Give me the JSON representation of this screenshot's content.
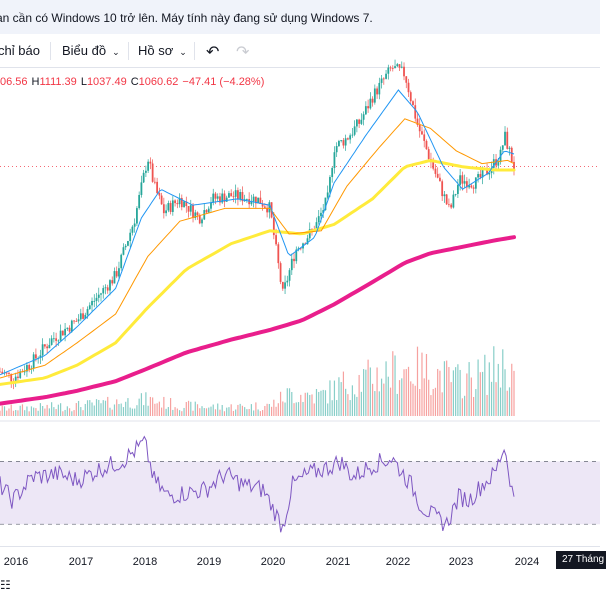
{
  "banner": {
    "text": "ạn cần có Windows 10 trở lên. Máy tính này đang sử dụng Windows 7."
  },
  "toolbar": {
    "indicators_label": "chỉ báo",
    "chart_label": "Biểu đồ",
    "profile_label": "Hồ sơ",
    "undo_icon": "undo-icon",
    "redo_icon": "redo-icon"
  },
  "legend": {
    "open_value": "06.56",
    "high_key": "H",
    "high_value": "1111.39",
    "low_key": "L",
    "low_value": "1037.49",
    "close_key": "C",
    "close_value": "1060.62",
    "change": "−47.41 (−4.28%)"
  },
  "colors": {
    "up": "#26a69a",
    "down": "#ef5350",
    "ma_fast": "#2196f3",
    "ma_mid": "#ff9800",
    "ma_slow": "#ffeb3b",
    "ma_long": "#e91e8c",
    "rsi": "#7e57c2",
    "rsi_band": "#ede7f6"
  },
  "x_axis": {
    "ticks": [
      "2016",
      "2017",
      "2018",
      "2019",
      "2020",
      "2021",
      "2022",
      "2023",
      "2024"
    ],
    "cursor_label": "27 Tháng"
  },
  "chart_data": {
    "type": "candlestick",
    "title": "",
    "x_start": 2015.8,
    "x_end": 2023.8,
    "price_range": [
      300,
      1300
    ],
    "last_close": 1060.62,
    "price_keypoints": [
      [
        2015.8,
        420
      ],
      [
        2016.0,
        400
      ],
      [
        2016.3,
        450
      ],
      [
        2016.6,
        520
      ],
      [
        2017.0,
        580
      ],
      [
        2017.3,
        650
      ],
      [
        2017.6,
        720
      ],
      [
        2017.9,
        900
      ],
      [
        2018.1,
        1090
      ],
      [
        2018.2,
        1000
      ],
      [
        2018.35,
        920
      ],
      [
        2018.6,
        960
      ],
      [
        2018.9,
        900
      ],
      [
        2019.1,
        960
      ],
      [
        2019.4,
        970
      ],
      [
        2019.8,
        960
      ],
      [
        2020.0,
        930
      ],
      [
        2020.2,
        660
      ],
      [
        2020.4,
        800
      ],
      [
        2020.7,
        870
      ],
      [
        2020.9,
        960
      ],
      [
        2021.0,
        1120
      ],
      [
        2021.2,
        1150
      ],
      [
        2021.4,
        1200
      ],
      [
        2021.6,
        1280
      ],
      [
        2021.9,
        1370
      ],
      [
        2022.1,
        1350
      ],
      [
        2022.3,
        1190
      ],
      [
        2022.5,
        1080
      ],
      [
        2022.8,
        920
      ],
      [
        2022.95,
        1020
      ],
      [
        2023.2,
        1010
      ],
      [
        2023.4,
        1050
      ],
      [
        2023.6,
        1100
      ],
      [
        2023.65,
        1160
      ],
      [
        2023.8,
        1060
      ]
    ],
    "ma_fast_keypoints": [
      [
        2015.8,
        410
      ],
      [
        2016.5,
        470
      ],
      [
        2017.0,
        560
      ],
      [
        2017.6,
        680
      ],
      [
        2018.0,
        900
      ],
      [
        2018.3,
        990
      ],
      [
        2018.8,
        940
      ],
      [
        2019.5,
        960
      ],
      [
        2020.0,
        940
      ],
      [
        2020.3,
        780
      ],
      [
        2020.7,
        840
      ],
      [
        2021.0,
        1010
      ],
      [
        2021.5,
        1160
      ],
      [
        2022.0,
        1300
      ],
      [
        2022.3,
        1230
      ],
      [
        2022.7,
        1060
      ],
      [
        2023.0,
        990
      ],
      [
        2023.4,
        1040
      ],
      [
        2023.65,
        1110
      ],
      [
        2023.8,
        1100
      ]
    ],
    "ma_mid_keypoints": [
      [
        2015.8,
        400
      ],
      [
        2016.5,
        440
      ],
      [
        2017.0,
        510
      ],
      [
        2017.6,
        600
      ],
      [
        2018.1,
        780
      ],
      [
        2018.6,
        890
      ],
      [
        2019.3,
        930
      ],
      [
        2020.0,
        930
      ],
      [
        2020.3,
        850
      ],
      [
        2020.8,
        860
      ],
      [
        2021.2,
        1000
      ],
      [
        2021.7,
        1120
      ],
      [
        2022.1,
        1210
      ],
      [
        2022.5,
        1180
      ],
      [
        2022.9,
        1110
      ],
      [
        2023.3,
        1070
      ],
      [
        2023.7,
        1080
      ],
      [
        2023.8,
        1070
      ]
    ],
    "ma_slow_keypoints": [
      [
        2015.8,
        380
      ],
      [
        2016.5,
        400
      ],
      [
        2017.0,
        440
      ],
      [
        2017.6,
        510
      ],
      [
        2018.1,
        620
      ],
      [
        2018.7,
        740
      ],
      [
        2019.4,
        820
      ],
      [
        2020.0,
        860
      ],
      [
        2020.5,
        850
      ],
      [
        2021.0,
        880
      ],
      [
        2021.6,
        960
      ],
      [
        2022.1,
        1060
      ],
      [
        2022.5,
        1080
      ],
      [
        2023.0,
        1060
      ],
      [
        2023.5,
        1050
      ],
      [
        2023.8,
        1050
      ]
    ],
    "ma_long_keypoints": [
      [
        2015.8,
        320
      ],
      [
        2016.5,
        340
      ],
      [
        2017.0,
        360
      ],
      [
        2017.6,
        390
      ],
      [
        2018.1,
        430
      ],
      [
        2018.7,
        480
      ],
      [
        2019.4,
        520
      ],
      [
        2020.0,
        550
      ],
      [
        2020.5,
        580
      ],
      [
        2021.0,
        630
      ],
      [
        2021.6,
        700
      ],
      [
        2022.1,
        760
      ],
      [
        2022.5,
        790
      ],
      [
        2023.0,
        810
      ],
      [
        2023.5,
        830
      ],
      [
        2023.8,
        840
      ]
    ],
    "rsi_range": [
      20,
      90
    ],
    "rsi_band": [
      30,
      70
    ],
    "rsi_keypoints": [
      [
        2015.8,
        55
      ],
      [
        2016.0,
        45
      ],
      [
        2016.3,
        60
      ],
      [
        2016.7,
        62
      ],
      [
        2017.0,
        58
      ],
      [
        2017.4,
        66
      ],
      [
        2017.7,
        70
      ],
      [
        2018.05,
        82
      ],
      [
        2018.2,
        58
      ],
      [
        2018.4,
        48
      ],
      [
        2018.7,
        50
      ],
      [
        2019.0,
        52
      ],
      [
        2019.3,
        62
      ],
      [
        2019.6,
        55
      ],
      [
        2019.9,
        52
      ],
      [
        2020.2,
        28
      ],
      [
        2020.35,
        55
      ],
      [
        2020.6,
        62
      ],
      [
        2020.9,
        66
      ],
      [
        2021.1,
        70
      ],
      [
        2021.3,
        60
      ],
      [
        2021.6,
        68
      ],
      [
        2021.9,
        72
      ],
      [
        2022.2,
        55
      ],
      [
        2022.35,
        42
      ],
      [
        2022.55,
        35
      ],
      [
        2022.75,
        30
      ],
      [
        2022.95,
        48
      ],
      [
        2023.1,
        45
      ],
      [
        2023.3,
        55
      ],
      [
        2023.5,
        62
      ],
      [
        2023.65,
        80
      ],
      [
        2023.8,
        45
      ]
    ],
    "volume_range": [
      0,
      100
    ],
    "volume_keypoints": [
      [
        2015.8,
        10
      ],
      [
        2016.5,
        12
      ],
      [
        2017.0,
        14
      ],
      [
        2017.6,
        18
      ],
      [
        2018.1,
        22
      ],
      [
        2018.6,
        14
      ],
      [
        2019.3,
        12
      ],
      [
        2020.0,
        14
      ],
      [
        2020.3,
        30
      ],
      [
        2020.8,
        28
      ],
      [
        2021.2,
        45
      ],
      [
        2021.7,
        55
      ],
      [
        2022.1,
        65
      ],
      [
        2022.5,
        60
      ],
      [
        2022.9,
        48
      ],
      [
        2023.3,
        55
      ],
      [
        2023.6,
        70
      ],
      [
        2023.8,
        58
      ]
    ]
  }
}
